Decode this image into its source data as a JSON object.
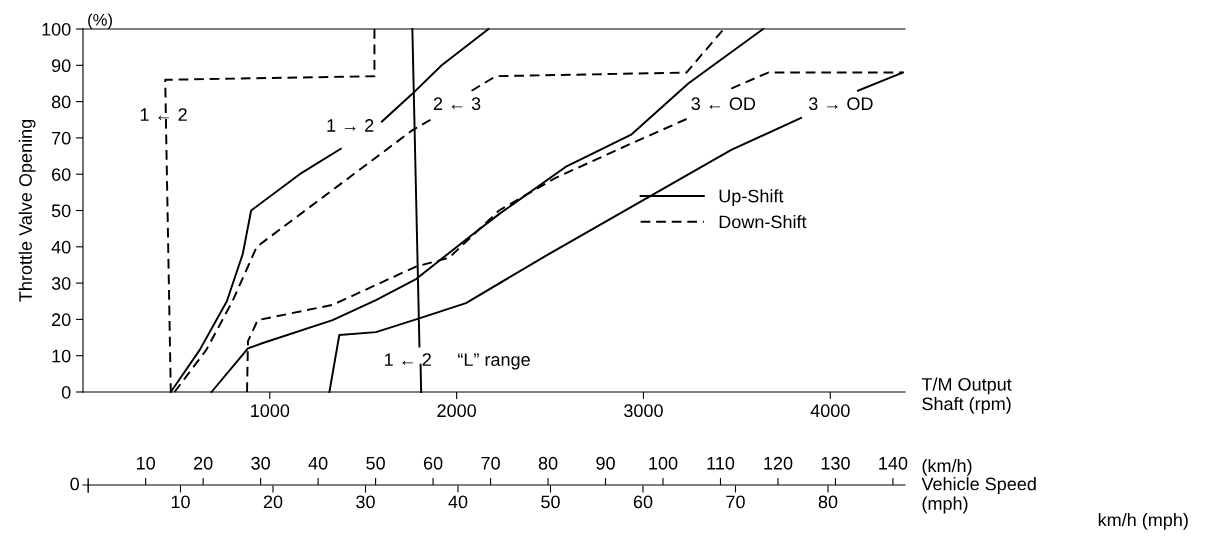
{
  "chart_data": {
    "type": "line",
    "ylabel": "Throttle Valve Opening",
    "xlabel": "T/M Output\nShaft (rpm)",
    "xlim": [
      0,
      4400
    ],
    "ylim": [
      0,
      100
    ],
    "xticks": [
      1000,
      2000,
      3000,
      4000
    ],
    "yticks": [
      0,
      10,
      20,
      30,
      40,
      50,
      60,
      70,
      80,
      90,
      100
    ],
    "grid": false,
    "legend": "right",
    "marker": "none",
    "x2lim": [
      -0.9,
      142.1
    ],
    "x2ticks": [
      10,
      20,
      30,
      40,
      50,
      60,
      70,
      80,
      90,
      100,
      110,
      120,
      130,
      140
    ],
    "x2label": "(km/h)",
    "series": [
      {
        "name": "Up-Shift",
        "color": "#000000",
        "line_style": "solid",
        "x": [
          470,
          625,
          770,
          855,
          900,
          1160,
          1380,
          null,
          1600,
          1760,
          1920,
          2170
        ],
        "values": [
          0,
          11.6,
          25,
          38,
          50,
          60,
          67,
          null,
          74.5,
          82,
          90,
          100
        ]
      },
      {
        "color": "#000000",
        "line_style": "solid",
        "x": [
          688,
          883,
          963,
          1336,
          1568,
          1780,
          2075,
          2227,
          2583,
          2937,
          3240,
          3640
        ],
        "values": [
          0,
          12,
          13.5,
          19.8,
          25.3,
          31,
          43,
          49,
          62,
          71,
          85,
          100
        ]
      },
      {
        "color": "#000000",
        "line_style": "solid",
        "x": [
          1319,
          1372,
          1568,
          1783,
          2050,
          2493,
          3027,
          3470,
          3844,
          null,
          4148,
          4389
        ],
        "values": [
          0,
          15.7,
          16.5,
          20,
          24.5,
          38,
          53.7,
          66.7,
          75.5,
          null,
          83,
          88
        ]
      },
      {
        "color": "#000000",
        "line_style": "solid",
        "x": [
          1763,
          1801,
          null,
          1807,
          1810
        ],
        "values": [
          100,
          12.5,
          null,
          7.5,
          0
        ]
      },
      {
        "name": "Down-Shift",
        "color": "#000000",
        "line_style": "dashed",
        "x": [
          1560,
          1560,
          440,
          470
        ],
        "values": [
          100,
          87,
          86,
          0
        ]
      },
      {
        "color": "#000000",
        "line_style": "dashed",
        "x": [
          490,
          660,
          800,
          930,
          1760,
          1860,
          null,
          2080,
          2210,
          3230,
          3430
        ],
        "values": [
          0,
          11.6,
          25,
          40,
          72,
          75,
          null,
          83,
          87,
          88,
          100
        ]
      },
      {
        "color": "#000000",
        "line_style": "dashed",
        "x": [
          878,
          883,
          935,
          1336,
          1780,
          1960,
          2227,
          2530,
          2937,
          3257,
          null,
          3470,
          3668,
          4389
        ],
        "values": [
          0,
          14,
          19.8,
          24,
          34.5,
          37,
          50,
          59,
          68.5,
          75.8,
          null,
          83.6,
          88,
          88
        ]
      }
    ],
    "annotations": [
      "(%)",
      "1 ← 2",
      "1 → 2",
      "2 ← 3",
      "3 ← OD",
      "3 → OD",
      "1 ← 2",
      "“L” range",
      "0",
      "Vehicle Speed",
      "km/h (mph)",
      "(mph)",
      "10",
      "20",
      "30",
      "40",
      "50",
      "60",
      "70",
      "80"
    ]
  }
}
